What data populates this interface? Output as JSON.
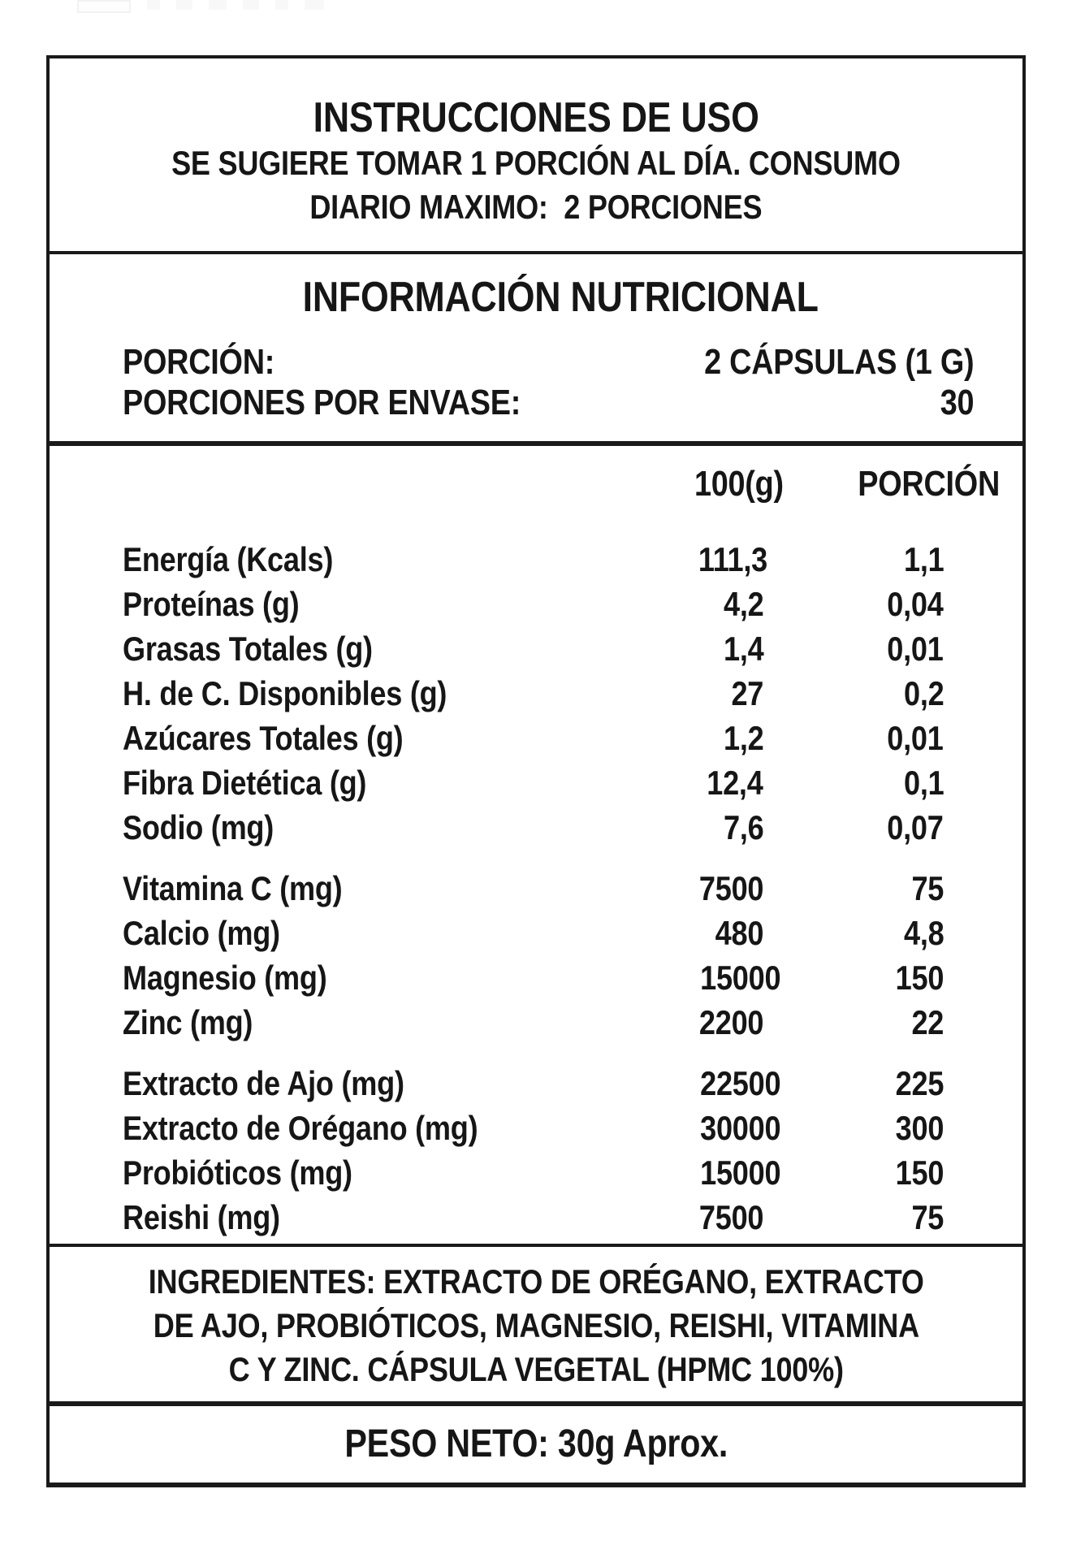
{
  "page": {
    "background": "#ffffff",
    "border_color": "#1a1a1a",
    "text_color": "#161616"
  },
  "instructions": {
    "title": "INSTRUCCIONES DE USO",
    "lines": [
      "SE SUGIERE TOMAR 1 PORCIÓN AL DÍA. CONSUMO",
      "DIARIO MAXIMO:  2 PORCIONES"
    ]
  },
  "nutrition": {
    "title": "INFORMACIÓN NUTRICIONAL",
    "serving": {
      "label": "PORCIÓN:",
      "value": "2 CÁPSULAS (1 G)"
    },
    "servings_per_container": {
      "label": "PORCIONES POR ENVASE:",
      "value": "30"
    },
    "table": {
      "columns": [
        "100(g)",
        "PORCIÓN"
      ],
      "groups": [
        {
          "rows": [
            {
              "name": "Energía (Kcals)",
              "per_100g": "111,3",
              "per_portion": "1,1"
            },
            {
              "name": "Proteínas (g)",
              "per_100g": "4,2",
              "per_portion": "0,04"
            },
            {
              "name": "Grasas Totales (g)",
              "per_100g": "1,4",
              "per_portion": "0,01"
            },
            {
              "name": "H. de C. Disponibles (g)",
              "per_100g": "27",
              "per_portion": "0,2"
            },
            {
              "name": "Azúcares Totales (g)",
              "per_100g": "1,2",
              "per_portion": "0,01"
            },
            {
              "name": "Fibra Dietética (g)",
              "per_100g": "12,4",
              "per_portion": "0,1"
            },
            {
              "name": "Sodio (mg)",
              "per_100g": "7,6",
              "per_portion": "0,07"
            }
          ]
        },
        {
          "rows": [
            {
              "name": "Vitamina C (mg)",
              "per_100g": "7500",
              "per_portion": "75"
            },
            {
              "name": "Calcio (mg)",
              "per_100g": "480",
              "per_portion": "4,8"
            },
            {
              "name": "Magnesio (mg)",
              "per_100g": "15000",
              "per_portion": "150"
            },
            {
              "name": "Zinc (mg)",
              "per_100g": "2200",
              "per_portion": "22"
            }
          ]
        },
        {
          "rows": [
            {
              "name": "Extracto de Ajo (mg)",
              "per_100g": "22500",
              "per_portion": "225"
            },
            {
              "name": "Extracto de Orégano (mg)",
              "per_100g": "30000",
              "per_portion": "300"
            },
            {
              "name": "Probióticos (mg)",
              "per_100g": "15000",
              "per_portion": "150"
            },
            {
              "name": "Reishi (mg)",
              "per_100g": "7500",
              "per_portion": "75"
            }
          ]
        }
      ]
    }
  },
  "ingredients": {
    "lines": [
      "INGREDIENTES: EXTRACTO DE ORÉGANO, EXTRACTO",
      "DE AJO, PROBIÓTICOS, MAGNESIO, REISHI, VITAMINA",
      "C Y ZINC. CÁPSULA VEGETAL (HPMC 100%)"
    ]
  },
  "net_weight": "PESO NETO: 30g Aprox."
}
